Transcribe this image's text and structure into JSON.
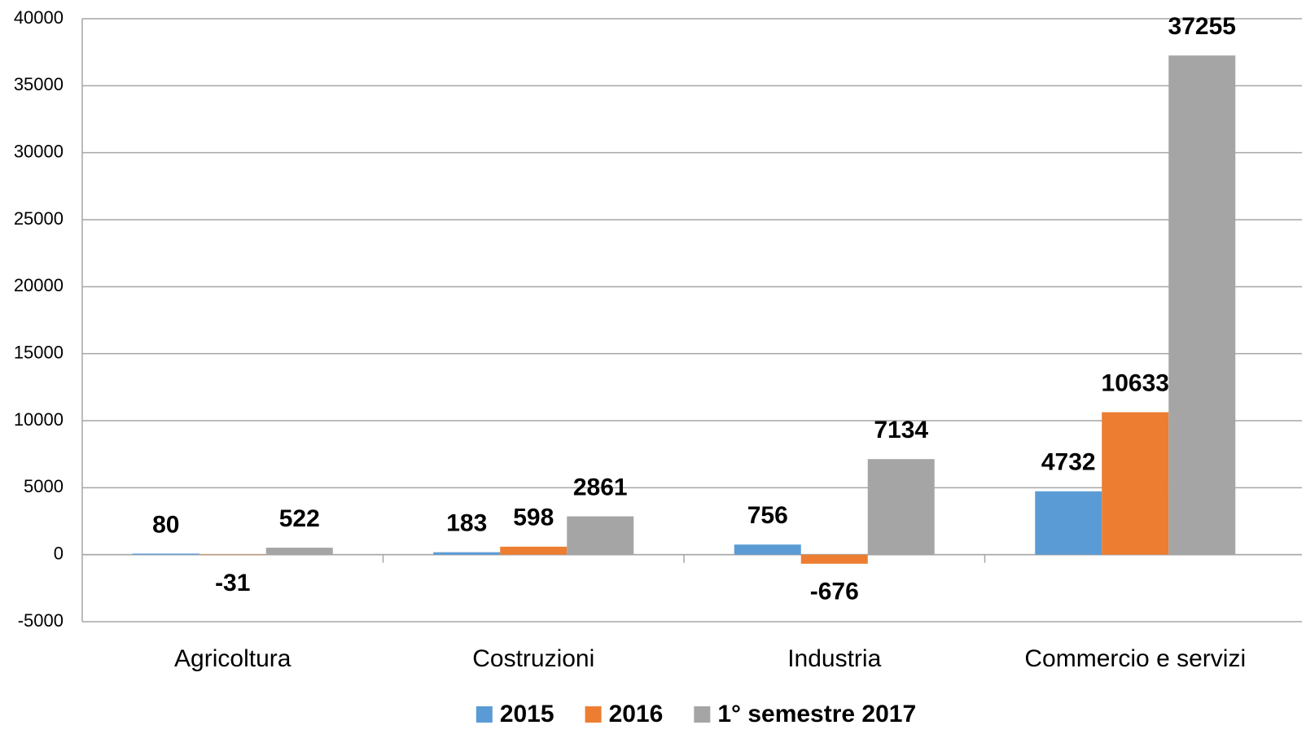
{
  "chart_data": {
    "type": "bar",
    "categories": [
      "Agricoltura",
      "Costruzioni",
      "Industria",
      "Commercio e servizi"
    ],
    "series": [
      {
        "name": "2015",
        "color": "#5b9bd5",
        "values": [
          80,
          183,
          756,
          4732
        ]
      },
      {
        "name": "2016",
        "color": "#ed7d31",
        "values": [
          -31,
          598,
          -676,
          10633
        ]
      },
      {
        "name": "1° semestre 2017",
        "color": "#a5a5a5",
        "values": [
          522,
          2861,
          7134,
          37255
        ]
      }
    ],
    "ylim": [
      -5000,
      40000
    ],
    "yticks": [
      -5000,
      0,
      5000,
      10000,
      15000,
      20000,
      25000,
      30000,
      35000,
      40000
    ],
    "grid": true,
    "legend": "bottom"
  }
}
